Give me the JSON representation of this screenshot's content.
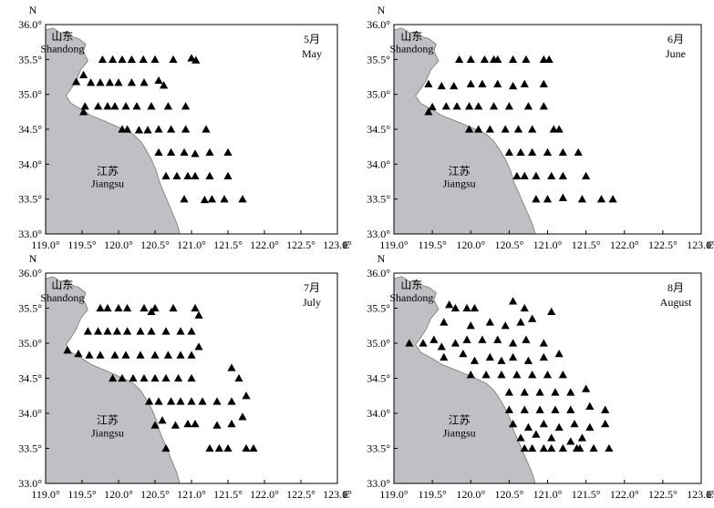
{
  "axis": {
    "x_ticks": [
      "119.0°",
      "119.5°",
      "120.0°",
      "120.5°",
      "121.0°",
      "121.5°",
      "122.0°",
      "122.5°",
      "123.0°"
    ],
    "y_ticks": [
      "33.0°",
      "33.5°",
      "34.0°",
      "34.5°",
      "35.0°",
      "35.5°",
      "36.0°"
    ],
    "north_label": "N",
    "east_label": "E"
  },
  "labels": {
    "shandong_cn": "山东",
    "shandong_en": "Shandong",
    "jiangsu_cn": "江苏",
    "jiangsu_en": "Jiangsu"
  },
  "colors": {
    "land": "#c0c0c4",
    "sea": "#ffffff",
    "station": "#000000"
  },
  "chart_data": [
    {
      "type": "scatter",
      "month_cn": "5月",
      "month_en": "May",
      "xlim": [
        119.0,
        123.0
      ],
      "ylim": [
        33.0,
        36.0
      ],
      "stations": [
        [
          119.78,
          35.5
        ],
        [
          119.92,
          35.5
        ],
        [
          120.05,
          35.5
        ],
        [
          120.18,
          35.5
        ],
        [
          120.34,
          35.5
        ],
        [
          120.5,
          35.5
        ],
        [
          120.75,
          35.5
        ],
        [
          121.0,
          35.52
        ],
        [
          121.06,
          35.49
        ],
        [
          119.42,
          35.18
        ],
        [
          119.52,
          35.28
        ],
        [
          119.62,
          35.17
        ],
        [
          119.75,
          35.17
        ],
        [
          119.88,
          35.17
        ],
        [
          120.0,
          35.17
        ],
        [
          120.18,
          35.17
        ],
        [
          120.35,
          35.17
        ],
        [
          120.55,
          35.2
        ],
        [
          120.62,
          35.13
        ],
        [
          119.52,
          34.75
        ],
        [
          119.54,
          34.83
        ],
        [
          119.72,
          34.83
        ],
        [
          119.85,
          34.83
        ],
        [
          119.95,
          34.83
        ],
        [
          120.1,
          34.83
        ],
        [
          120.25,
          34.83
        ],
        [
          120.45,
          34.83
        ],
        [
          120.68,
          34.83
        ],
        [
          120.92,
          34.83
        ],
        [
          120.05,
          34.5
        ],
        [
          120.12,
          34.5
        ],
        [
          120.28,
          34.49
        ],
        [
          120.4,
          34.49
        ],
        [
          120.55,
          34.5
        ],
        [
          120.72,
          34.5
        ],
        [
          120.92,
          34.5
        ],
        [
          121.2,
          34.5
        ],
        [
          120.55,
          34.17
        ],
        [
          120.72,
          34.17
        ],
        [
          120.9,
          34.17
        ],
        [
          121.05,
          34.15
        ],
        [
          121.25,
          34.17
        ],
        [
          121.5,
          34.17
        ],
        [
          120.65,
          33.83
        ],
        [
          120.8,
          33.83
        ],
        [
          120.95,
          33.83
        ],
        [
          121.05,
          33.83
        ],
        [
          121.25,
          33.83
        ],
        [
          121.5,
          33.83
        ],
        [
          120.9,
          33.5
        ],
        [
          121.18,
          33.49
        ],
        [
          121.28,
          33.5
        ],
        [
          121.45,
          33.5
        ],
        [
          121.7,
          33.5
        ]
      ]
    },
    {
      "type": "scatter",
      "month_cn": "6月",
      "month_en": "June",
      "xlim": [
        119.0,
        123.0
      ],
      "ylim": [
        33.0,
        36.0
      ],
      "stations": [
        [
          119.85,
          35.5
        ],
        [
          120.0,
          35.5
        ],
        [
          120.18,
          35.5
        ],
        [
          120.3,
          35.5
        ],
        [
          120.35,
          35.5
        ],
        [
          120.55,
          35.5
        ],
        [
          120.72,
          35.5
        ],
        [
          120.95,
          35.5
        ],
        [
          121.02,
          35.5
        ],
        [
          119.45,
          35.15
        ],
        [
          119.62,
          35.12
        ],
        [
          119.78,
          35.12
        ],
        [
          120.0,
          35.15
        ],
        [
          120.15,
          35.15
        ],
        [
          120.35,
          35.15
        ],
        [
          120.55,
          35.12
        ],
        [
          120.7,
          35.15
        ],
        [
          120.95,
          35.15
        ],
        [
          119.45,
          34.75
        ],
        [
          119.5,
          34.82
        ],
        [
          119.68,
          34.83
        ],
        [
          119.82,
          34.83
        ],
        [
          119.98,
          34.83
        ],
        [
          120.1,
          34.83
        ],
        [
          120.3,
          34.83
        ],
        [
          120.5,
          34.83
        ],
        [
          120.75,
          34.83
        ],
        [
          120.95,
          34.83
        ],
        [
          119.98,
          34.5
        ],
        [
          120.1,
          34.5
        ],
        [
          120.25,
          34.5
        ],
        [
          120.45,
          34.5
        ],
        [
          120.62,
          34.5
        ],
        [
          120.8,
          34.5
        ],
        [
          121.08,
          34.5
        ],
        [
          121.15,
          34.5
        ],
        [
          120.5,
          34.17
        ],
        [
          120.65,
          34.17
        ],
        [
          120.8,
          34.17
        ],
        [
          121.0,
          34.17
        ],
        [
          121.2,
          34.17
        ],
        [
          121.4,
          34.17
        ],
        [
          120.6,
          33.83
        ],
        [
          120.7,
          33.83
        ],
        [
          120.85,
          33.83
        ],
        [
          121.05,
          33.83
        ],
        [
          121.2,
          33.83
        ],
        [
          121.5,
          33.83
        ],
        [
          120.85,
          33.5
        ],
        [
          121.0,
          33.5
        ],
        [
          121.2,
          33.52
        ],
        [
          121.45,
          33.5
        ],
        [
          121.7,
          33.5
        ],
        [
          121.85,
          33.5
        ]
      ]
    },
    {
      "type": "scatter",
      "month_cn": "7月",
      "month_en": "July",
      "xlim": [
        119.0,
        123.0
      ],
      "ylim": [
        33.0,
        36.0
      ],
      "stations": [
        [
          119.75,
          35.5
        ],
        [
          119.85,
          35.5
        ],
        [
          120.0,
          35.5
        ],
        [
          120.12,
          35.5
        ],
        [
          120.35,
          35.5
        ],
        [
          120.5,
          35.5
        ],
        [
          120.75,
          35.5
        ],
        [
          121.05,
          35.5
        ],
        [
          120.45,
          35.45
        ],
        [
          121.1,
          35.4
        ],
        [
          119.58,
          35.17
        ],
        [
          119.72,
          35.17
        ],
        [
          119.85,
          35.17
        ],
        [
          119.98,
          35.17
        ],
        [
          120.12,
          35.17
        ],
        [
          120.3,
          35.17
        ],
        [
          120.45,
          35.17
        ],
        [
          120.65,
          35.17
        ],
        [
          120.85,
          35.17
        ],
        [
          121.0,
          35.17
        ],
        [
          119.3,
          34.9
        ],
        [
          119.45,
          34.85
        ],
        [
          119.6,
          34.83
        ],
        [
          119.75,
          34.83
        ],
        [
          119.95,
          34.83
        ],
        [
          120.1,
          34.83
        ],
        [
          120.3,
          34.83
        ],
        [
          120.5,
          34.83
        ],
        [
          120.68,
          34.83
        ],
        [
          120.85,
          34.83
        ],
        [
          121.0,
          34.83
        ],
        [
          121.1,
          34.95
        ],
        [
          119.92,
          34.5
        ],
        [
          120.05,
          34.5
        ],
        [
          120.2,
          34.5
        ],
        [
          120.35,
          34.5
        ],
        [
          120.5,
          34.5
        ],
        [
          120.65,
          34.5
        ],
        [
          120.82,
          34.5
        ],
        [
          121.0,
          34.5
        ],
        [
          121.55,
          34.65
        ],
        [
          121.65,
          34.5
        ],
        [
          120.42,
          34.17
        ],
        [
          120.55,
          34.17
        ],
        [
          120.72,
          34.17
        ],
        [
          120.85,
          34.17
        ],
        [
          121.0,
          34.17
        ],
        [
          121.15,
          34.17
        ],
        [
          121.35,
          34.17
        ],
        [
          121.55,
          34.17
        ],
        [
          121.75,
          34.25
        ],
        [
          120.5,
          33.83
        ],
        [
          120.6,
          33.9
        ],
        [
          120.78,
          33.83
        ],
        [
          120.95,
          33.85
        ],
        [
          121.05,
          33.85
        ],
        [
          121.35,
          33.83
        ],
        [
          121.55,
          33.85
        ],
        [
          121.7,
          33.95
        ],
        [
          120.65,
          33.5
        ],
        [
          121.25,
          33.5
        ],
        [
          121.38,
          33.5
        ],
        [
          121.5,
          33.5
        ],
        [
          121.75,
          33.5
        ],
        [
          121.85,
          33.5
        ]
      ]
    },
    {
      "type": "scatter",
      "month_cn": "8月",
      "month_en": "August",
      "xlim": [
        119.0,
        123.0
      ],
      "ylim": [
        33.0,
        36.0
      ],
      "stations": [
        [
          119.72,
          35.55
        ],
        [
          119.8,
          35.5
        ],
        [
          119.95,
          35.5
        ],
        [
          120.05,
          35.5
        ],
        [
          120.55,
          35.6
        ],
        [
          120.7,
          35.5
        ],
        [
          121.05,
          35.45
        ],
        [
          119.65,
          35.3
        ],
        [
          120.0,
          35.25
        ],
        [
          120.25,
          35.3
        ],
        [
          120.45,
          35.25
        ],
        [
          120.65,
          35.3
        ],
        [
          120.8,
          35.35
        ],
        [
          119.2,
          35.0
        ],
        [
          119.38,
          35.0
        ],
        [
          119.52,
          35.05
        ],
        [
          119.62,
          34.95
        ],
        [
          119.8,
          35.0
        ],
        [
          119.95,
          35.05
        ],
        [
          120.15,
          35.05
        ],
        [
          120.35,
          35.05
        ],
        [
          120.55,
          35.0
        ],
        [
          120.72,
          35.05
        ],
        [
          120.95,
          35.0
        ],
        [
          119.65,
          34.8
        ],
        [
          119.9,
          34.85
        ],
        [
          120.05,
          34.75
        ],
        [
          120.25,
          34.8
        ],
        [
          120.4,
          34.75
        ],
        [
          120.55,
          34.8
        ],
        [
          120.75,
          34.75
        ],
        [
          120.95,
          34.8
        ],
        [
          121.15,
          34.85
        ],
        [
          120.0,
          34.55
        ],
        [
          120.2,
          34.55
        ],
        [
          120.4,
          34.55
        ],
        [
          120.6,
          34.55
        ],
        [
          120.8,
          34.55
        ],
        [
          121.0,
          34.55
        ],
        [
          121.2,
          34.55
        ],
        [
          120.5,
          34.3
        ],
        [
          120.7,
          34.3
        ],
        [
          120.9,
          34.3
        ],
        [
          121.1,
          34.3
        ],
        [
          121.3,
          34.3
        ],
        [
          121.5,
          34.35
        ],
        [
          120.5,
          34.05
        ],
        [
          120.7,
          34.05
        ],
        [
          120.9,
          34.05
        ],
        [
          121.1,
          34.05
        ],
        [
          121.3,
          34.05
        ],
        [
          121.55,
          34.1
        ],
        [
          121.75,
          34.05
        ],
        [
          120.55,
          33.85
        ],
        [
          120.75,
          33.8
        ],
        [
          120.95,
          33.85
        ],
        [
          121.15,
          33.8
        ],
        [
          121.35,
          33.85
        ],
        [
          121.55,
          33.8
        ],
        [
          121.75,
          33.85
        ],
        [
          120.65,
          33.65
        ],
        [
          120.85,
          33.7
        ],
        [
          121.05,
          33.65
        ],
        [
          121.3,
          33.6
        ],
        [
          121.45,
          33.65
        ],
        [
          120.7,
          33.5
        ],
        [
          120.8,
          33.5
        ],
        [
          120.95,
          33.5
        ],
        [
          121.05,
          33.5
        ],
        [
          121.2,
          33.5
        ],
        [
          121.38,
          33.5
        ],
        [
          121.42,
          33.5
        ],
        [
          121.6,
          33.5
        ],
        [
          121.8,
          33.5
        ]
      ]
    }
  ]
}
